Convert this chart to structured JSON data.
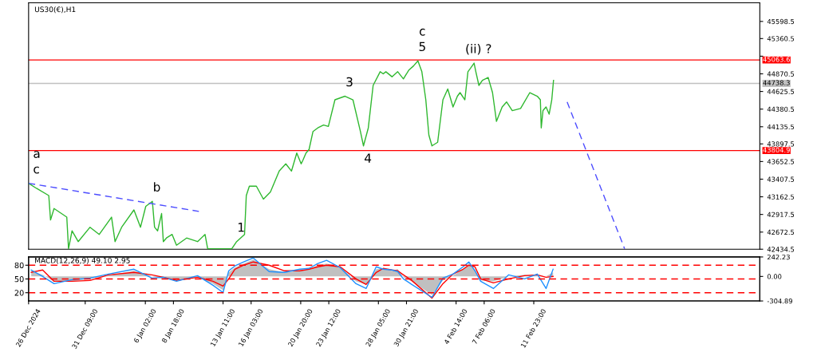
{
  "chart_data": [
    {
      "type": "line",
      "title": "US30(€),H1",
      "xlim": [
        "2024-12-26T00:00",
        "2025-03-05T10:00"
      ],
      "ylim": [
        42434.5,
        45857
      ],
      "yticks": [
        45598.5,
        45360.5,
        {
          "value": 45115.5,
          "label": null
        },
        44870.5,
        44625.5,
        44380.5,
        44135.5,
        43897.5,
        43652.5,
        43407.5,
        43162.5,
        42917.5,
        42672.5,
        42434.5
      ],
      "tick_labels": "y",
      "series": [
        {
          "color": "#2fb82f",
          "x": [
            "2024-12-26T00:00",
            "2024-12-26T18:00",
            "2024-12-27T22:00",
            "2024-12-28T02:00",
            "2024-12-28T10:00",
            "2024-12-29T15:00",
            "2024-12-29T19:00",
            "2024-12-30T03:00",
            "2024-12-30T17:00",
            "2024-12-31T20:00",
            "2025-01-01T17:00",
            "2025-01-02T21:00",
            "2025-01-03T05:00",
            "2025-01-03T20:00",
            "2025-01-05T00:00",
            "2025-01-05T15:00",
            "2025-01-06T03:00",
            "2025-01-06T14:00",
            "2025-01-06T18:00",
            "2025-01-06T23:00",
            "2025-01-07T06:00",
            "2025-01-07T15:00",
            "2025-01-07T19:00",
            "2025-01-08T02:00",
            "2025-01-08T15:00",
            "2025-01-09T01:00",
            "2025-01-10T00:00",
            "2025-01-11T01:00",
            "2025-01-11T18:00",
            "2025-01-12T00:00",
            "2025-01-14T07:00",
            "2025-01-14T18:00",
            "2025-01-15T03:00",
            "2025-01-15T12:00",
            "2025-01-15T16:00",
            "2025-01-15T23:00",
            "2025-01-16T15:00",
            "2025-01-17T07:00",
            "2025-01-17T23:00",
            "2025-01-18T19:00",
            "2025-01-19T10:00",
            "2025-01-19T23:00",
            "2025-01-20T11:00",
            "2025-01-20T21:00",
            "2025-01-21T01:00",
            "2025-01-21T08:00",
            "2025-01-21T15:00",
            "2025-01-22T00:00",
            "2025-01-22T11:00",
            "2025-01-23T00:00",
            "2025-01-23T11:00",
            "2025-01-24T02:00",
            "2025-01-25T01:00",
            "2025-01-25T19:00",
            "2025-01-26T12:00",
            "2025-01-26T19:00",
            "2025-01-27T06:00",
            "2025-01-27T17:00",
            "2025-01-28T09:00",
            "2025-01-28T16:00",
            "2025-01-28T22:00",
            "2025-01-29T12:00",
            "2025-01-30T01:00",
            "2025-01-30T14:00",
            "2025-01-31T02:00",
            "2025-01-31T13:00",
            "2025-01-31T23:00",
            "2025-02-01T08:00",
            "2025-02-01T17:00",
            "2025-02-02T00:00",
            "2025-02-02T07:00",
            "2025-02-02T20:00",
            "2025-02-03T08:00",
            "2025-02-03T19:00",
            "2025-02-04T07:00",
            "2025-02-04T17:00",
            "2025-02-04T23:00",
            "2025-02-05T10:00",
            "2025-02-05T17:00",
            "2025-02-05T23:00",
            "2025-02-06T07:00",
            "2025-02-06T11:00",
            "2025-02-06T18:00",
            "2025-02-07T02:00",
            "2025-02-07T15:00",
            "2025-02-08T01:00",
            "2025-02-08T10:00",
            "2025-02-08T23:00",
            "2025-02-09T09:00",
            "2025-02-09T22:00",
            "2025-02-10T17:00",
            "2025-02-11T14:00",
            "2025-02-12T07:00",
            "2025-02-12T14:00",
            "2025-02-12T16:00",
            "2025-02-12T20:00",
            "2025-02-13T03:00",
            "2025-02-13T10:00",
            "2025-02-13T16:00",
            "2025-02-13T20:00"
          ],
          "values": [
            43350,
            43280,
            43180,
            42840,
            43000,
            42880,
            42440,
            42690,
            42540,
            42740,
            42640,
            42880,
            42540,
            42740,
            42980,
            42740,
            43030,
            43080,
            43100,
            42740,
            42690,
            42930,
            42540,
            42590,
            42640,
            42490,
            42590,
            42540,
            42640,
            42440,
            42440,
            42540,
            42590,
            42640,
            43180,
            43310,
            43310,
            43130,
            43230,
            43520,
            43620,
            43520,
            43770,
            43620,
            43670,
            43770,
            43820,
            44070,
            44120,
            44160,
            44140,
            44510,
            44560,
            44510,
            44070,
            43870,
            44120,
            44710,
            44900,
            44870,
            44900,
            44830,
            44900,
            44800,
            44920,
            44980,
            45050,
            44900,
            44510,
            44020,
            43870,
            43920,
            44510,
            44660,
            44410,
            44560,
            44610,
            44510,
            44900,
            44950,
            45020,
            44900,
            44710,
            44780,
            44820,
            44610,
            44210,
            44410,
            44480,
            44360,
            44390,
            44610,
            44560,
            44510,
            44120,
            44360,
            44410,
            44310,
            44510,
            44780
          ]
        },
        {
          "color": "#4d4dff",
          "line_style": "dashed",
          "x": [
            "2024-12-26T00:00",
            "2025-01-11T04:00"
          ],
          "values": [
            43350,
            42960
          ]
        },
        {
          "color": "#4d4dff",
          "line_style": "dashed",
          "x": [
            "2025-02-15T03:00",
            "2025-02-20T14:00"
          ],
          "values": [
            44480,
            42440
          ]
        }
      ],
      "ref_lines": [
        {
          "axis": "y",
          "value": 45063.6,
          "label": "45063.6",
          "color": "#ff0000"
        },
        {
          "axis": "y",
          "value": 44738.3,
          "label": "44738.3",
          "color": "#c0c0c0"
        },
        {
          "axis": "y",
          "value": 43804.9,
          "label": "43804.9",
          "color": "#ff0000"
        }
      ],
      "annotations": [
        {
          "text": "c",
          "x": "2024-12-26T00:00",
          "y": 43350
        },
        {
          "text": "a",
          "x": "2024-12-26T00:00",
          "y": 43350
        },
        {
          "text": "b",
          "x": "2025-01-06T18:00",
          "y": 43100
        },
        {
          "text": "1",
          "x": "2025-01-14T18:00",
          "y": 42540
        },
        {
          "text": "3",
          "x": "2025-01-25T01:00",
          "y": 44560
        },
        {
          "text": "4",
          "x": "2025-01-26T19:00",
          "y": 43870
        },
        {
          "text": "5",
          "x": "2025-01-31T23:00",
          "y": 45050
        },
        {
          "text": "c",
          "x": "2025-01-31T23:00",
          "y": 45050
        },
        {
          "text": "(ii) ?",
          "x": "2025-02-06T07:00",
          "y": 45020
        }
      ]
    },
    {
      "type": "line",
      "title": "MACD(12,26,9) 49.10 2.95",
      "xlim": [
        "2024-12-26T00:00",
        "2025-03-05T10:00"
      ],
      "ylim": [
        -304.89,
        242.23
      ],
      "yticks": [
        242.23,
        {
          "value": 0,
          "label": "0.00"
        },
        -304.89
      ],
      "y2lim": [
        2,
        98
      ],
      "y2ticks": [
        80,
        50,
        20
      ],
      "xticks": [
        {
          "value": "2024-12-26T00:00",
          "label": "26 Dec 2024"
        },
        {
          "value": "2024-12-31T09:00",
          "label": "31 Dec 09:00"
        },
        {
          "value": "2025-01-06T02:00",
          "label": "6 Jan 02:00"
        },
        {
          "value": "2025-01-08T18:00",
          "label": "8 Jan 18:00"
        },
        {
          "value": "2025-01-13T11:00",
          "label": "13 Jan 11:00"
        },
        {
          "value": "2025-01-16T03:00",
          "label": "16 Jan 03:00"
        },
        {
          "value": "2025-01-20T20:00",
          "label": "20 Jan 20:00"
        },
        {
          "value": "2025-01-23T12:00",
          "label": "23 Jan 12:00"
        },
        {
          "value": "2025-01-28T05:00",
          "label": "28 Jan 05:00"
        },
        {
          "value": "2025-01-30T21:00",
          "label": "30 Jan 21:00"
        },
        {
          "value": "2025-02-04T14:00",
          "label": "4 Feb 14:00"
        },
        {
          "value": "2025-02-07T06:00",
          "label": "7 Feb 06:00"
        },
        {
          "value": "2025-02-11T23:00",
          "label": "11 Feb 23:00"
        }
      ],
      "x": [
        "2024-12-26T06:00",
        "2024-12-27T08:00",
        "2024-12-28T10:00",
        "2024-12-30T03:00",
        "2024-12-31T20:00",
        "2025-01-02T14:00",
        "2025-01-05T00:00",
        "2025-01-06T17:00",
        "2025-01-07T19:00",
        "2025-01-09T01:00",
        "2025-01-11T01:00",
        "2025-01-12T12:00",
        "2025-01-13T11:00",
        "2025-01-14T00:00",
        "2025-01-14T14:00",
        "2025-01-15T10:00",
        "2025-01-16T08:00",
        "2025-01-17T20:00",
        "2025-01-19T07:00",
        "2025-01-20T18:00",
        "2025-01-21T15:00",
        "2025-01-22T11:00",
        "2025-01-23T07:00",
        "2025-01-24T14:00",
        "2025-01-26T02:00",
        "2025-01-27T01:00",
        "2025-01-28T00:00",
        "2025-01-28T16:00",
        "2025-01-29T12:00",
        "2025-01-30T01:00",
        "2025-01-30T14:00",
        "2025-01-31T09:00",
        "2025-02-02T07:00",
        "2025-02-03T08:00",
        "2025-02-04T07:00",
        "2025-02-05T06:00",
        "2025-02-05T19:00",
        "2025-02-06T09:00",
        "2025-02-06T22:00",
        "2025-02-08T03:00",
        "2025-02-09T14:00",
        "2025-02-11T02:00",
        "2025-02-12T07:00",
        "2025-02-13T03:00",
        "2025-02-13T19:00"
      ],
      "series": [
        {
          "type": "area",
          "color": "#c0c0c0",
          "values": [
            70,
            20,
            -60,
            -60,
            -30,
            10,
            70,
            0,
            -30,
            -50,
            -10,
            -90,
            -170,
            50,
            110,
            160,
            210,
            90,
            50,
            70,
            90,
            140,
            160,
            120,
            -60,
            -100,
            90,
            100,
            70,
            90,
            -10,
            -60,
            -230,
            -50,
            10,
            90,
            160,
            90,
            -50,
            -60,
            0,
            20,
            10,
            0,
            50
          ]
        },
        {
          "type": "line",
          "color": "#ff0000",
          "values": [
            50,
            80,
            -60,
            -60,
            -50,
            20,
            50,
            20,
            -10,
            -50,
            -10,
            -60,
            -120,
            -30,
            90,
            140,
            180,
            140,
            70,
            70,
            90,
            120,
            140,
            120,
            -30,
            -100,
            50,
            100,
            80,
            70,
            20,
            -50,
            -270,
            -90,
            30,
            90,
            140,
            120,
            -30,
            -80,
            -30,
            10,
            20,
            -10,
            0
          ]
        },
        {
          "type": "line",
          "color": "#1e90ff",
          "values": [
            80,
            0,
            -90,
            -40,
            -20,
            30,
            90,
            -20,
            -10,
            -60,
            10,
            -110,
            -200,
            70,
            130,
            180,
            230,
            60,
            50,
            90,
            100,
            160,
            200,
            110,
            -90,
            -150,
            120,
            90,
            80,
            60,
            -30,
            -100,
            -260,
            -20,
            30,
            120,
            180,
            70,
            -60,
            -150,
            20,
            -30,
            30,
            -150,
            90
          ]
        }
      ],
      "ref_lines": [
        {
          "axis": "y2",
          "value": 80,
          "color": "#ff0000",
          "line_style": "dashed"
        },
        {
          "axis": "y2",
          "value": 50,
          "color": "#ff0000",
          "line_style": "dashed"
        },
        {
          "axis": "y2",
          "value": 20,
          "color": "#ff0000",
          "line_style": "dashed"
        }
      ]
    }
  ]
}
